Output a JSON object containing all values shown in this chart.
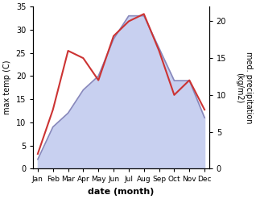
{
  "months": [
    "Jan",
    "Feb",
    "Mar",
    "Apr",
    "May",
    "Jun",
    "Jul",
    "Aug",
    "Sep",
    "Oct",
    "Nov",
    "Dec"
  ],
  "temp": [
    2,
    9,
    12,
    17,
    20,
    28,
    33,
    33,
    26,
    19,
    19,
    11
  ],
  "precip": [
    2,
    8,
    16,
    15,
    12,
    18,
    20,
    21,
    16,
    10,
    12,
    8
  ],
  "temp_fill_color": "#c8d0f0",
  "temp_line_color": "#8888bb",
  "precip_line_color": "#cc3333",
  "temp_ylim": [
    0,
    35
  ],
  "precip_ylim": [
    0,
    22
  ],
  "ylabel_left": "max temp (C)",
  "ylabel_right": "med. precipitation\n(kg/m2)",
  "xlabel": "date (month)",
  "temp_yticks": [
    0,
    5,
    10,
    15,
    20,
    25,
    30,
    35
  ],
  "precip_yticks": [
    0,
    5,
    10,
    15,
    20
  ],
  "background_color": "#ffffff"
}
